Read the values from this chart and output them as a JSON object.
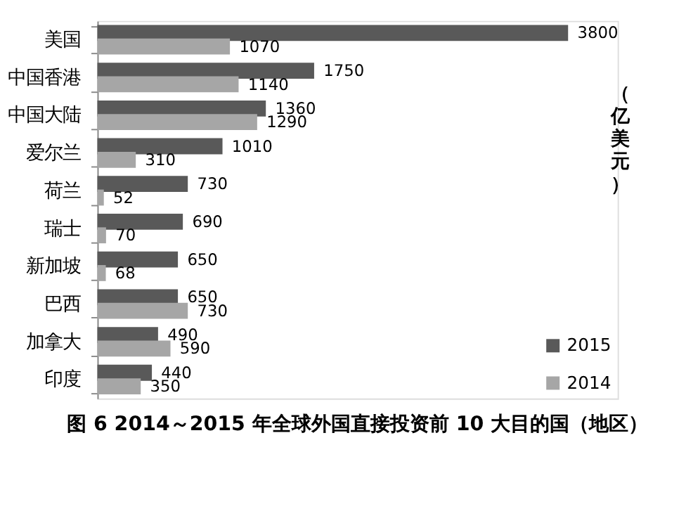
{
  "chart_data": {
    "type": "bar",
    "orientation": "horizontal",
    "title": "图 6 2014～2015 年全球外国直接投资前 10 大目的国（地区）",
    "ylabel": "（亿美元）",
    "categories": [
      "美国",
      "中国香港",
      "中国大陆",
      "爱尔兰",
      "荷兰",
      "瑞士",
      "新加坡",
      "巴西",
      "加拿大",
      "印度"
    ],
    "series": [
      {
        "name": "2015",
        "color": "#595959",
        "values": [
          3800,
          1750,
          1360,
          1010,
          730,
          690,
          650,
          650,
          490,
          440
        ]
      },
      {
        "name": "2014",
        "color": "#a6a6a6",
        "values": [
          1070,
          1140,
          1290,
          310,
          52,
          70,
          68,
          730,
          590,
          350
        ]
      }
    ],
    "xlim": [
      0,
      4200
    ],
    "data_labels": true,
    "legend": "bottom right",
    "tick_labels": "y",
    "grid": false
  }
}
